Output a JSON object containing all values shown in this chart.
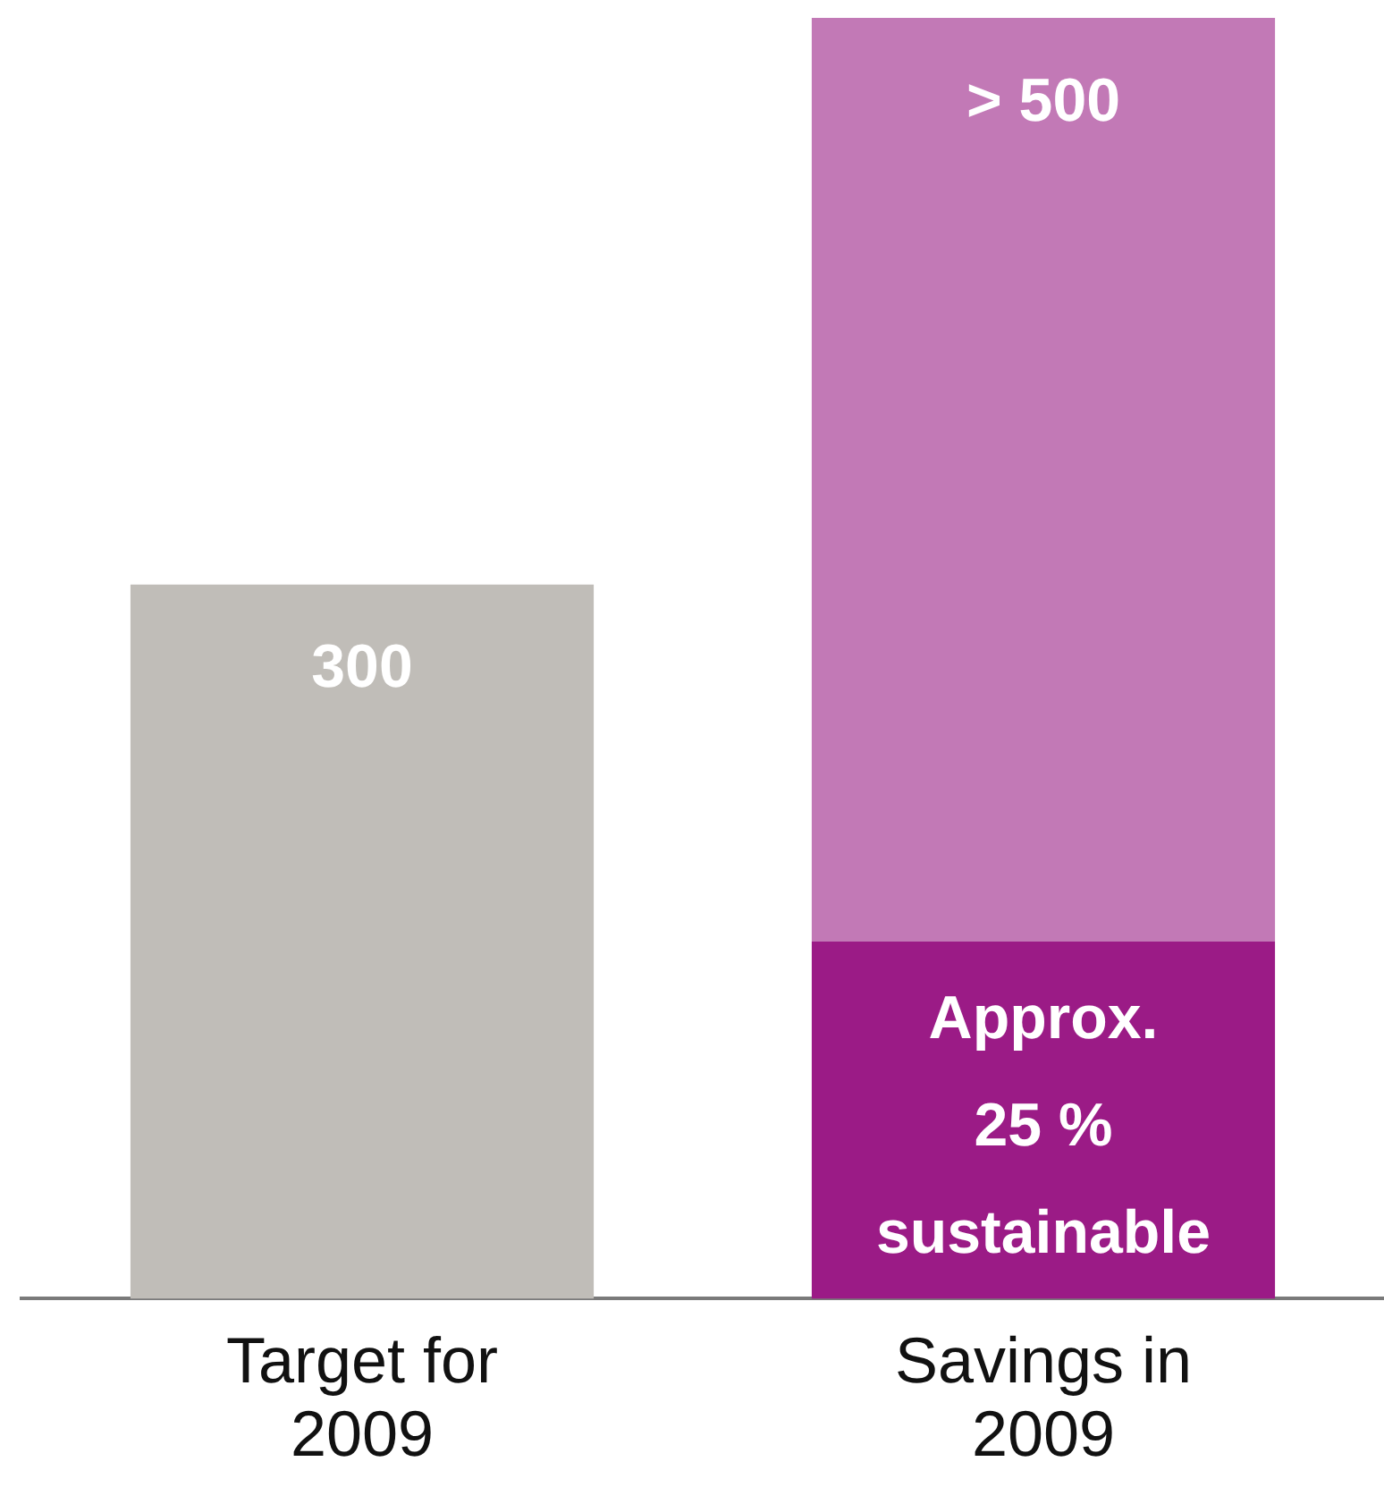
{
  "chart_data": {
    "type": "bar",
    "stacked": true,
    "categories": [
      "Target for 2009",
      "Savings in 2009"
    ],
    "series": [
      {
        "colors": [
          "#c0bdb8",
          "#9b1b86"
        ],
        "values": [
          300,
          150
        ],
        "value_labels": [
          "300",
          null
        ]
      },
      {
        "color": "#c279b6",
        "values": [
          null,
          388
        ],
        "value_labels": [
          null,
          "> 500"
        ]
      }
    ],
    "annotations": [
      "Approx.\n25 %\nsustainable"
    ],
    "ylim": [
      0,
      538
    ],
    "tick_labels": "x",
    "grid": false,
    "legend": false
  }
}
